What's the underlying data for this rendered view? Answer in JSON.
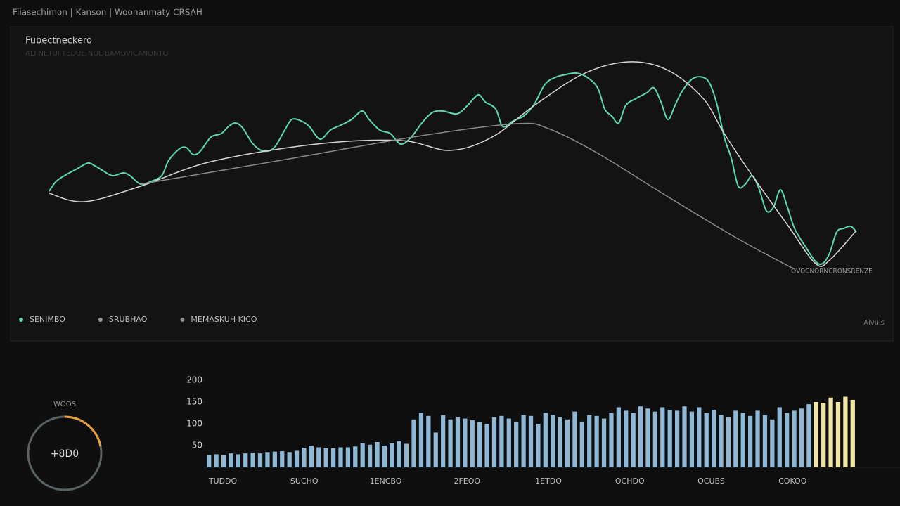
{
  "header": {
    "title": "Fiiasechimon | Kanson | Woonanmaty CRSAH"
  },
  "chart_data": [
    {
      "type": "line",
      "title": "Fubectneckero",
      "subtitle": "ALI NETUI TEDUE NOL BAMOVICANONTO",
      "xlim": [
        0,
        1150
      ],
      "ylim": [
        0,
        340
      ],
      "legend": "bottom-left",
      "annotations": [
        "OVOCNORNCRONSRENZE",
        "Aivuls"
      ],
      "series": [
        {
          "name": "SENIMBO",
          "color": "#5ad8b0",
          "x": [
            0,
            10,
            25,
            40,
            55,
            65,
            75,
            90,
            105,
            115,
            130,
            145,
            160,
            170,
            185,
            195,
            205,
            215,
            230,
            245,
            255,
            265,
            275,
            290,
            305,
            320,
            335,
            345,
            358,
            370,
            385,
            400,
            415,
            430,
            445,
            455,
            470,
            485,
            500,
            515,
            530,
            545,
            560,
            580,
            595,
            610,
            620,
            635,
            645,
            660,
            675,
            690,
            705,
            720,
            735,
            750,
            765,
            780,
            790,
            800,
            810,
            820,
            835,
            850,
            860,
            870,
            880,
            890,
            900,
            915,
            930,
            940,
            950,
            960,
            970,
            980,
            990,
            1000,
            1010,
            1020,
            1030,
            1040,
            1050,
            1060,
            1075,
            1090,
            1100,
            1110,
            1120,
            1130,
            1140,
            1148
          ],
          "values": [
            128,
            142,
            152,
            160,
            168,
            164,
            158,
            150,
            154,
            150,
            138,
            142,
            150,
            172,
            188,
            190,
            180,
            185,
            205,
            210,
            220,
            225,
            218,
            195,
            185,
            190,
            215,
            230,
            228,
            220,
            202,
            215,
            222,
            230,
            242,
            230,
            215,
            210,
            195,
            205,
            225,
            240,
            242,
            238,
            250,
            265,
            255,
            245,
            220,
            228,
            235,
            252,
            280,
            290,
            294,
            296,
            290,
            275,
            245,
            235,
            225,
            250,
            260,
            268,
            275,
            255,
            230,
            250,
            270,
            288,
            290,
            280,
            250,
            205,
            175,
            135,
            138,
            150,
            130,
            100,
            105,
            130,
            105,
            75,
            50,
            28,
            25,
            40,
            70,
            75,
            78,
            70
          ]
        },
        {
          "name": "SRUBHAO",
          "color": "#d6d6d6",
          "x": [
            0,
            50,
            130,
            230,
            380,
            500,
            570,
            630,
            690,
            760,
            825,
            880,
            930,
            960,
            1000,
            1050,
            1090,
            1110,
            1148
          ],
          "values": [
            125,
            113,
            135,
            170,
            195,
            200,
            186,
            205,
            250,
            295,
            312,
            300,
            260,
            210,
            150,
            80,
            25,
            30,
            72
          ]
        },
        {
          "name": "MEMASKUH KICO",
          "color": "#8a8a8a",
          "x": [
            130,
            330,
            530,
            665,
            710,
            780,
            880,
            980,
            1060
          ],
          "values": [
            138,
            172,
            207,
            224,
            217,
            182,
            120,
            60,
            17
          ]
        }
      ]
    },
    {
      "type": "bar",
      "color": "#8fb8d6",
      "highlight_color": "#efe6a8",
      "highlight_count": 6,
      "ylim": [
        0,
        200
      ],
      "yticks": [
        50,
        100,
        150,
        200
      ],
      "x_labels": [
        "TUDDO",
        "SUCHO",
        "1ENCBO",
        "2FEOO",
        "1ETDO",
        "OCHDO",
        "OCUBS",
        "COKOO"
      ],
      "values": [
        28,
        30,
        28,
        32,
        30,
        32,
        34,
        32,
        35,
        36,
        37,
        35,
        38,
        45,
        50,
        46,
        44,
        44,
        46,
        46,
        48,
        55,
        52,
        58,
        50,
        55,
        60,
        54,
        110,
        125,
        118,
        80,
        120,
        110,
        115,
        112,
        108,
        104,
        100,
        115,
        118,
        112,
        105,
        120,
        118,
        100,
        125,
        120,
        115,
        110,
        128,
        105,
        120,
        118,
        112,
        125,
        138,
        130,
        125,
        140,
        135,
        128,
        138,
        132,
        130,
        140,
        128,
        138,
        125,
        132,
        120,
        115,
        130,
        125,
        118,
        130,
        120,
        110,
        138,
        125,
        130,
        135,
        145,
        150,
        148,
        160,
        150,
        162,
        155
      ]
    }
  ],
  "gauge": {
    "title": "WOOS",
    "text": "+8D0",
    "progress": 22,
    "range": [
      0,
      100
    ]
  }
}
